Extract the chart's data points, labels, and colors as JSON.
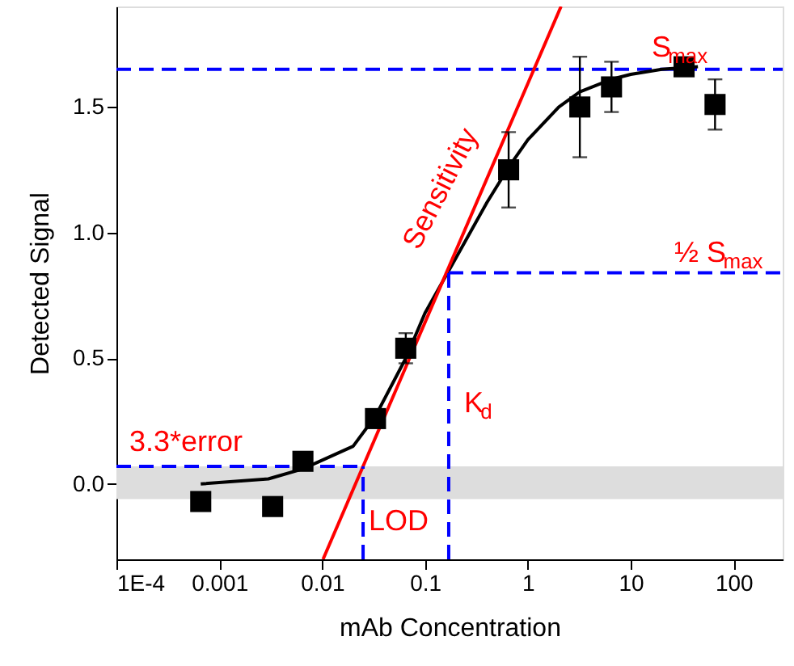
{
  "chart_data": {
    "type": "scatter",
    "xlabel": "mAb Concentration",
    "ylabel": "Detected Signal",
    "log": "x",
    "grid": false,
    "xlim": [
      0.0001,
      300
    ],
    "ylim": [
      -0.3,
      1.9
    ],
    "xticks": [
      {
        "value": 0.0001,
        "label": "1E-4"
      },
      0.001,
      0.01,
      0.1,
      1,
      10,
      100
    ],
    "yticks": [
      {
        "value": 0,
        "label": "0.0"
      },
      0.5,
      {
        "value": 1,
        "label": "1.0"
      },
      1.5
    ],
    "series": [
      {
        "marker": "square",
        "color": "#000000",
        "x": [
          0.00066,
          0.0033,
          0.0065,
          0.033,
          0.065,
          0.65,
          3.2,
          6.5,
          33,
          66
        ],
        "values": [
          -0.07,
          -0.09,
          0.09,
          0.26,
          0.54,
          1.25,
          1.5,
          1.58,
          1.66,
          1.51
        ],
        "errors": [
          null,
          null,
          null,
          null,
          0.06,
          0.15,
          0.2,
          0.1,
          0.03,
          0.1
        ]
      },
      {
        "type": "line",
        "color": "#000000",
        "x": [
          0.00066,
          0.003,
          0.0065,
          0.02,
          0.033,
          0.065,
          0.1,
          0.2,
          0.4,
          0.65,
          1,
          2,
          3.2,
          6.5,
          10,
          20,
          45
        ],
        "values": [
          0.0,
          0.02,
          0.06,
          0.15,
          0.27,
          0.5,
          0.68,
          0.9,
          1.12,
          1.26,
          1.37,
          1.5,
          1.56,
          1.61,
          1.63,
          1.65,
          1.66
        ]
      },
      {
        "type": "line",
        "color": "#ff0000",
        "x": [
          0.0102,
          2.1
        ],
        "values": [
          -0.3,
          1.9
        ]
      },
      {
        "type": "line",
        "line_style": "dashed",
        "color": "#0000ff",
        "x": [
          0.17,
          300
        ],
        "values": [
          0.84,
          0.84
        ]
      },
      {
        "type": "line",
        "line_style": "dashed",
        "color": "#0000ff",
        "x": [
          0.17,
          0.17
        ],
        "values": [
          -0.3,
          0.84
        ]
      },
      {
        "type": "line",
        "line_style": "dashed",
        "color": "#0000ff",
        "x": [
          0.0001,
          0.025
        ],
        "values": [
          0.07,
          0.07
        ]
      },
      {
        "type": "line",
        "line_style": "dashed",
        "color": "#0000ff",
        "x": [
          0.025,
          0.025
        ],
        "values": [
          -0.3,
          0.07
        ]
      }
    ],
    "ref_lines": [
      {
        "axis": "y",
        "value": 1.65,
        "color": "#0000ff",
        "line_style": "dashed"
      }
    ],
    "bands": [
      {
        "axis": "y",
        "from": -0.06,
        "to": 0.07,
        "color": "#dddddd"
      }
    ],
    "annotations": [
      "S$_{max}$",
      "½ S$_{max}$",
      "Sensitivity",
      "3.3*error",
      "K$_{d}$",
      "LOD"
    ]
  }
}
